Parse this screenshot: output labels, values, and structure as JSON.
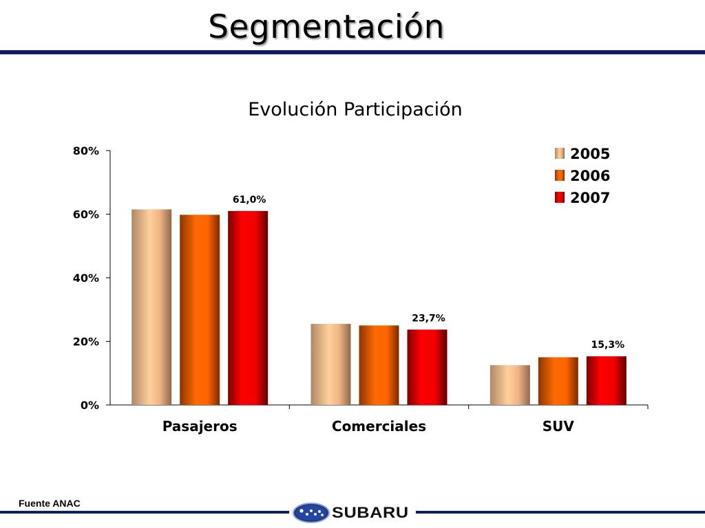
{
  "slide": {
    "title": "Segmentación",
    "source": "Fuente ANAC",
    "brand": "SUBARU"
  },
  "colors": {
    "rule": "#0f1c6b",
    "2005": "#f5b888",
    "2006": "#ff6a00",
    "2007": "#ff0000"
  },
  "chart_data": {
    "type": "bar",
    "title": "Evolución Participación",
    "xlabel": "",
    "ylabel": "",
    "categories": [
      "Pasajeros",
      "Comerciales",
      "SUV"
    ],
    "series": [
      {
        "name": "2005",
        "values": [
          61.5,
          25.5,
          12.5
        ]
      },
      {
        "name": "2006",
        "values": [
          59.8,
          25.0,
          15.0
        ]
      },
      {
        "name": "2007",
        "values": [
          61.0,
          23.7,
          15.3
        ]
      }
    ],
    "data_labels": [
      {
        "series": "2007",
        "category": "Pasajeros",
        "text": "61,0%"
      },
      {
        "series": "2007",
        "category": "Comerciales",
        "text": "23,7%"
      },
      {
        "series": "2007",
        "category": "SUV",
        "text": "15,3%"
      }
    ],
    "ylim": [
      0,
      80
    ],
    "yticks": [
      "0%",
      "20%",
      "40%",
      "60%",
      "80%"
    ],
    "ytick_values": [
      0,
      20,
      40,
      60,
      80
    ],
    "grid": false,
    "legend_position": "top-right"
  }
}
